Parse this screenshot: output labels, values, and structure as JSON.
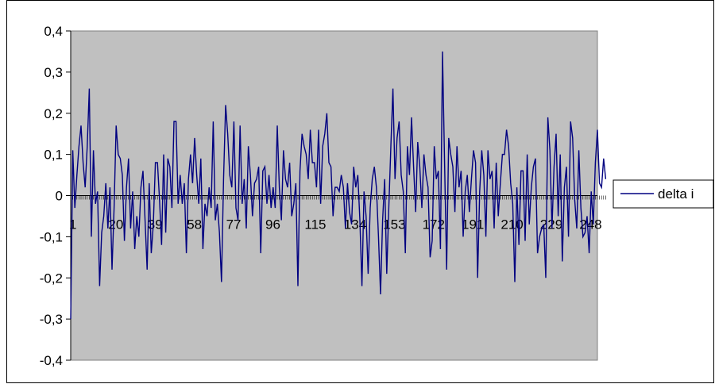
{
  "chart_data": {
    "type": "line",
    "title": "",
    "xlabel": "",
    "ylabel": "",
    "ylim": [
      -0.4,
      0.4
    ],
    "y_ticks": [
      "0,4",
      "0,3",
      "0,2",
      "0,1",
      "0",
      "-0,1",
      "-0,2",
      "-0,3",
      "-0,4"
    ],
    "y_tick_values": [
      0.4,
      0.3,
      0.2,
      0.1,
      0,
      -0.1,
      -0.2,
      -0.3,
      -0.4
    ],
    "x_ticks": [
      "1",
      "20",
      "39",
      "58",
      "77",
      "96",
      "115",
      "134",
      "153",
      "172",
      "191",
      "210",
      "229",
      "248"
    ],
    "x_tick_values": [
      1,
      20,
      39,
      58,
      77,
      96,
      115,
      134,
      153,
      172,
      191,
      210,
      229,
      248
    ],
    "x_range": [
      1,
      256
    ],
    "grid": false,
    "legend_position": "right",
    "plot_background": "#c0c0c0",
    "line_color": "#000080",
    "series": [
      {
        "name": "delta i",
        "values": [
          -0.3,
          0.11,
          -0.03,
          0.05,
          0.12,
          0.17,
          0.08,
          0.02,
          0.12,
          0.26,
          -0.1,
          0.11,
          -0.02,
          0.01,
          -0.22,
          -0.09,
          -0.05,
          0.03,
          -0.08,
          0.02,
          -0.18,
          -0.03,
          0.17,
          0.1,
          0.09,
          0.05,
          -0.11,
          0.02,
          0.09,
          -0.08,
          0.01,
          -0.13,
          -0.05,
          -0.1,
          0.02,
          0.06,
          -0.06,
          -0.18,
          0.03,
          -0.14,
          -0.07,
          0.08,
          0.08,
          -0.01,
          -0.12,
          0.1,
          -0.09,
          0.09,
          0.07,
          -0.03,
          0.18,
          0.18,
          -0.02,
          0.05,
          -0.02,
          0.03,
          -0.14,
          0.04,
          0.1,
          0.03,
          0.14,
          0.05,
          -0.02,
          0.09,
          -0.13,
          -0.02,
          -0.05,
          0.02,
          -0.03,
          0.18,
          -0.06,
          -0.02,
          -0.09,
          -0.21,
          0.04,
          0.22,
          0.15,
          0.05,
          0.02,
          0.18,
          -0.03,
          -0.06,
          0.17,
          -0.02,
          0.04,
          -0.08,
          0.12,
          0.05,
          -0.05,
          0.03,
          0.04,
          0.07,
          -0.14,
          0.06,
          0.07,
          -0.02,
          0.05,
          -0.03,
          0.02,
          -0.03,
          0.17,
          0.02,
          -0.06,
          0.11,
          0.04,
          0.02,
          0.08,
          -0.05,
          -0.02,
          0.03,
          -0.22,
          0.06,
          0.15,
          0.12,
          0.1,
          0.04,
          0.16,
          0.08,
          0.08,
          0.02,
          0.16,
          -0.02,
          0.12,
          0.15,
          0.2,
          0.08,
          0.07,
          -0.05,
          0.02,
          0.02,
          0.01,
          0.05,
          0.02,
          -0.08,
          0.03,
          -0.04,
          -0.07,
          0.07,
          0.02,
          0.05,
          -0.06,
          -0.22,
          0.01,
          -0.05,
          -0.19,
          -0.03,
          0.04,
          0.07,
          0.02,
          -0.1,
          -0.24,
          -0.06,
          0.04,
          -0.19,
          -0.03,
          0.12,
          0.26,
          0.04,
          0.14,
          0.18,
          0.05,
          0.01,
          -0.14,
          0.12,
          0.05,
          0.19,
          0.07,
          -0.04,
          0.13,
          0.07,
          -0.03,
          0.1,
          0.05,
          0.02,
          -0.15,
          -0.11,
          0.12,
          0.04,
          0.06,
          -0.13,
          0.35,
          0.08,
          -0.18,
          0.14,
          0.1,
          0.07,
          -0.04,
          0.12,
          0.02,
          0.06,
          -0.1,
          0.01,
          0.05,
          -0.04,
          0.04,
          0.11,
          0.08,
          -0.2,
          0.01,
          0.11,
          0.05,
          -0.1,
          0.11,
          0.04,
          0.06,
          -0.08,
          0.08,
          -0.05,
          0.03,
          0.1,
          0.1,
          0.16,
          0.12,
          0.03,
          -0.02,
          -0.21,
          0.02,
          -0.12,
          0.06,
          0.06,
          -0.11,
          0.1,
          -0.07,
          0.02,
          0.07,
          0.09,
          -0.14,
          -0.1,
          -0.08,
          -0.07,
          -0.2,
          0.19,
          0.11,
          -0.08,
          0.07,
          0.15,
          -0.05,
          0.1,
          -0.16,
          0.02,
          0.07,
          -0.1,
          0.18,
          0.14,
          -0.01,
          -0.08,
          0.11,
          -0.03,
          -0.1,
          -0.09,
          -0.05,
          -0.14,
          0.01,
          -0.07,
          0.08,
          0.16,
          0.03,
          0.02,
          0.09,
          0.04
        ]
      }
    ]
  }
}
